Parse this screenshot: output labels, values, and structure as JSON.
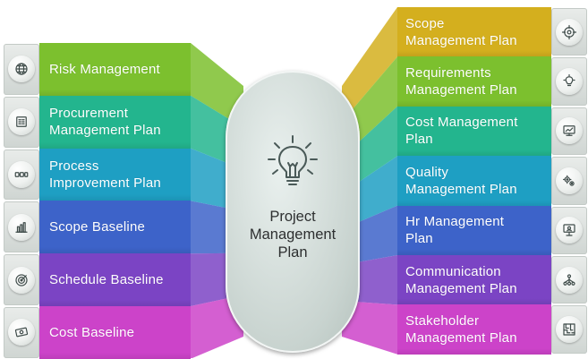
{
  "center": {
    "title_lines": [
      "Project",
      "Management",
      "Plan"
    ]
  },
  "left_items": [
    {
      "lines": [
        "Risk Management"
      ],
      "color": "#7cc02e",
      "icon": "globe-icon"
    },
    {
      "lines": [
        "Procurement",
        "Management Plan"
      ],
      "color": "#23b58e",
      "icon": "document-icon"
    },
    {
      "lines": [
        "Process",
        "Improvement Plan"
      ],
      "color": "#1e9fc3",
      "icon": "process-flow-icon"
    },
    {
      "lines": [
        "Scope Baseline"
      ],
      "color": "#3d63c9",
      "icon": "bar-chart-icon"
    },
    {
      "lines": [
        "Schedule Baseline"
      ],
      "color": "#7b44c4",
      "icon": "target-icon"
    },
    {
      "lines": [
        "Cost Baseline"
      ],
      "color": "#cc43c9",
      "icon": "money-icon"
    }
  ],
  "right_items": [
    {
      "lines": [
        "Scope",
        "Management Plan"
      ],
      "color": "#d4af1e",
      "icon": "crosshair-icon"
    },
    {
      "lines": [
        "Requirements",
        "Management Plan"
      ],
      "color": "#7cc02e",
      "icon": "lightbulb-icon"
    },
    {
      "lines": [
        "Cost Management",
        "Plan"
      ],
      "color": "#23b58e",
      "icon": "monitor-chart-icon"
    },
    {
      "lines": [
        "Quality",
        "Management Plan"
      ],
      "color": "#1e9fc3",
      "icon": "gears-icon"
    },
    {
      "lines": [
        "Hr Management",
        "Plan"
      ],
      "color": "#3d63c9",
      "icon": "presentation-icon"
    },
    {
      "lines": [
        "Communication",
        "Management Plan"
      ],
      "color": "#7b44c4",
      "icon": "network-icon"
    },
    {
      "lines": [
        "Stakeholder",
        "Management Plan"
      ],
      "color": "#cc43c9",
      "icon": "maze-icon"
    }
  ]
}
